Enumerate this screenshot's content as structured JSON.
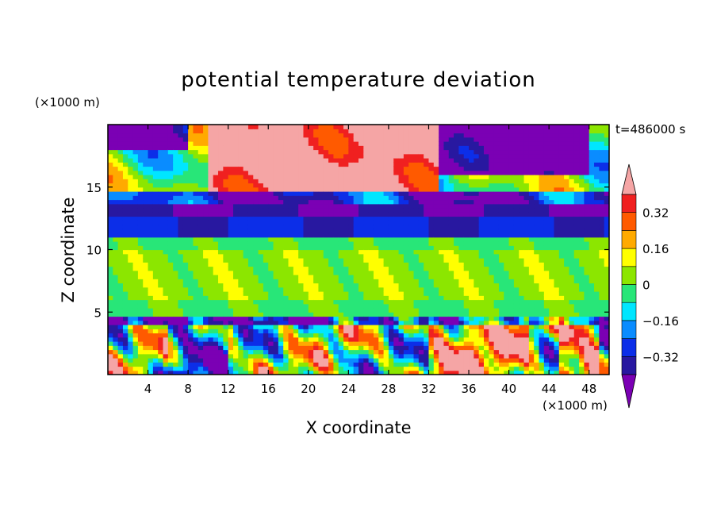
{
  "chart_data": {
    "type": "heatmap",
    "title": "potential temperature deviation",
    "xlabel": "X coordinate",
    "ylabel": "Z coordinate",
    "x_unit": "(×1000 m)",
    "y_unit": "(×1000 m)",
    "time_label": "t=486000 s",
    "xlim": [
      0,
      50
    ],
    "ylim": [
      0,
      20
    ],
    "x_ticks": [
      4,
      8,
      12,
      16,
      20,
      24,
      28,
      32,
      36,
      40,
      44,
      48
    ],
    "y_ticks": [
      5,
      10,
      15
    ],
    "colorbar": {
      "levels": [
        -0.4,
        -0.32,
        -0.24,
        -0.16,
        -0.08,
        0,
        0.08,
        0.16,
        0.24,
        0.32,
        0.4
      ],
      "tick_labels": [
        "0.32",
        "0.16",
        "0",
        "−0.16",
        "−0.32"
      ],
      "tick_values": [
        0.32,
        0.16,
        0,
        -0.16,
        -0.32
      ],
      "colors": [
        "#7b00b4",
        "#2818a0",
        "#0c2ee8",
        "#0a8cff",
        "#00e6ff",
        "#28e678",
        "#8ce600",
        "#ffff00",
        "#ffaa00",
        "#ff5a00",
        "#f02020",
        "#f5a5a5"
      ],
      "extend": "both"
    },
    "field_description_layers": [
      {
        "z_range": [
          0,
          4.6
        ],
        "pattern": "mixed positive/negative convective cells"
      },
      {
        "z_range": [
          4.6,
          11
        ],
        "dominant_value": 0.04
      },
      {
        "z_range": [
          11,
          13.5
        ],
        "dominant_value": -0.3
      },
      {
        "z_range": [
          13.5,
          20
        ],
        "pattern": "large positive (>0.4) and negative (<-0.4) patches"
      }
    ]
  }
}
